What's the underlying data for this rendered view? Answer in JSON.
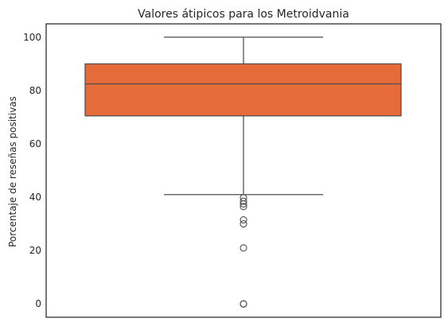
{
  "chart_data": {
    "type": "box",
    "title": "Valores átipicos para los Metroidvania",
    "xlabel": "",
    "ylabel": "Porcentaje de reseñas positivas",
    "ylim": [
      -5,
      105
    ],
    "yticks": [
      0,
      20,
      40,
      60,
      80,
      100
    ],
    "grid": false,
    "box": {
      "min_whisker": 41,
      "q1": 70.5,
      "median": 82.5,
      "q3": 90,
      "max_whisker": 100,
      "outliers": [
        39.8,
        38.5,
        37.5,
        36.5,
        31.5,
        30,
        21,
        0,
        0
      ]
    },
    "box_color": "#E66B3B",
    "line_color": "#4d4d4d"
  }
}
